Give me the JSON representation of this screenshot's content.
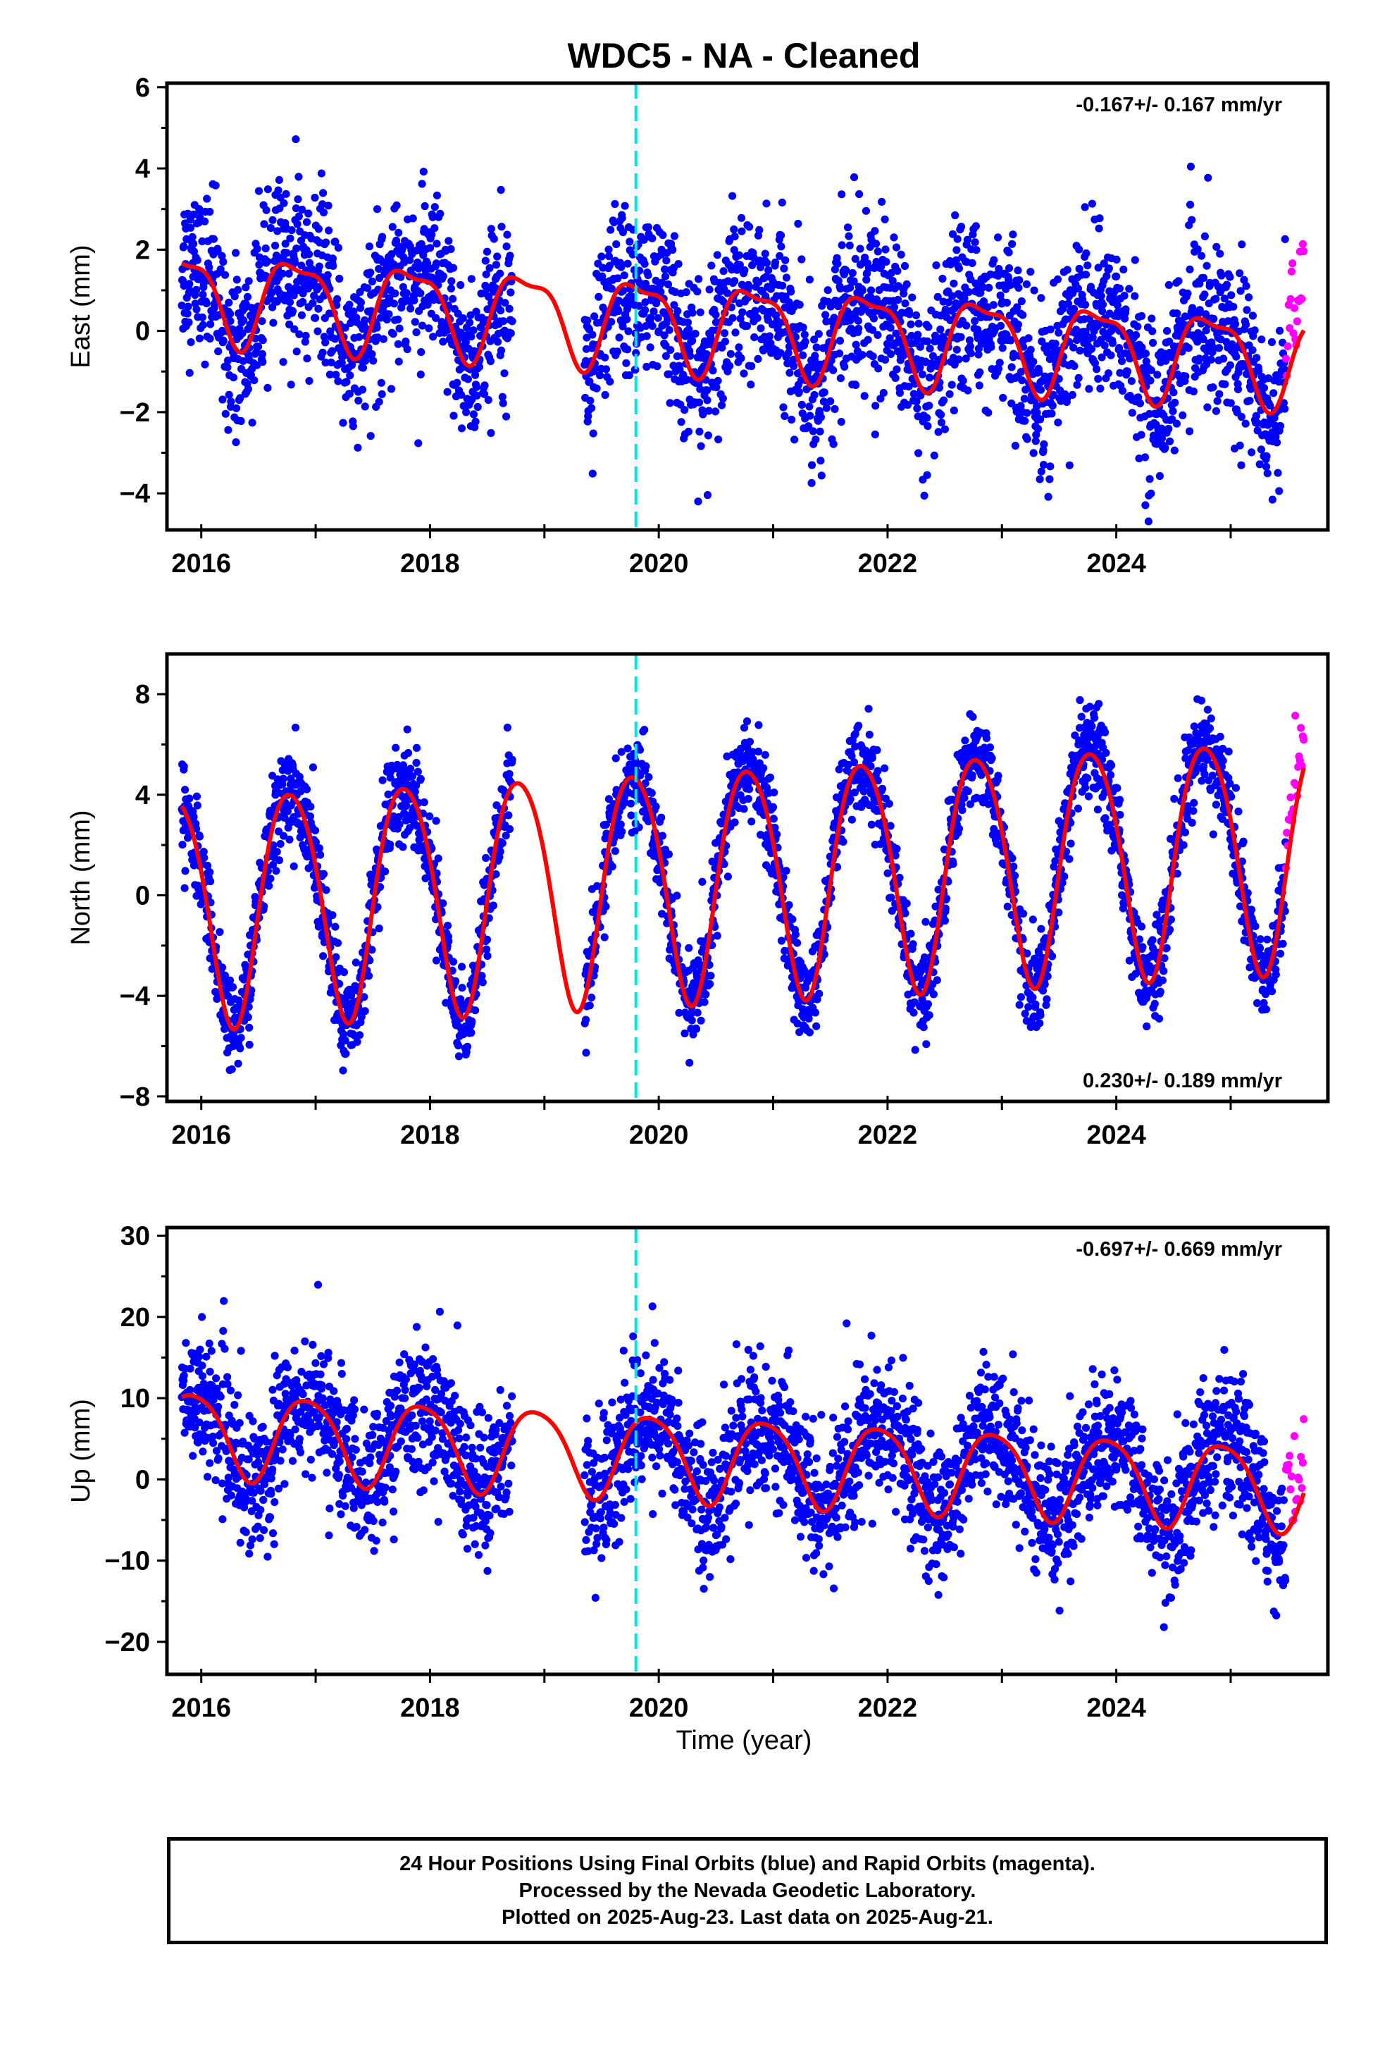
{
  "title": "WDC5  - NA - Cleaned",
  "x_axis_title": "Time (year)",
  "caption": [
    "24 Hour Positions Using Final Orbits (blue) and Rapid Orbits (magenta).",
    "Processed by the Nevada Geodetic Laboratory.",
    "Plotted on 2025-Aug-23. Last data on 2025-Aug-21."
  ],
  "colors": {
    "final_orbits": "#0000ff",
    "rapid_orbits": "#ff00ff",
    "model_fit": "#ff0000",
    "equipment_change": "#00e5e5",
    "frame": "#000000"
  },
  "chart_data": [
    {
      "type": "scatter",
      "panel": "east",
      "ylabel": "East (mm)",
      "xlim": [
        2015.7,
        2025.85
      ],
      "ylim": [
        -4.9,
        6.1
      ],
      "xticks": [
        2016,
        2018,
        2020,
        2022,
        2024
      ],
      "yticks": [
        -4,
        -2,
        0,
        2,
        4,
        6
      ],
      "rate_label": "-0.167+/- 0.167 mm/yr",
      "rate_position": "top-right",
      "vertical_line_x": 2019.8,
      "data_start": 2015.83,
      "final_end": 2025.48,
      "rapid_end": 2025.64,
      "gap": [
        2018.72,
        2019.35
      ],
      "model": {
        "offset": 0.25,
        "trend": -0.167,
        "annual_amp": 1.05,
        "annual_phase": 0.58,
        "semiannual_amp": 0.35
      },
      "scatter_sd": 1.0,
      "series": [
        {
          "name": "Final Orbits",
          "color": "#0000ff",
          "kind": "points"
        },
        {
          "name": "Rapid Orbits",
          "color": "#ff00ff",
          "kind": "points"
        },
        {
          "name": "Model",
          "color": "#ff0000",
          "kind": "line"
        }
      ]
    },
    {
      "type": "scatter",
      "panel": "north",
      "ylabel": "North (mm)",
      "xlim": [
        2015.7,
        2025.85
      ],
      "ylim": [
        -8.2,
        9.6
      ],
      "xticks": [
        2016,
        2018,
        2020,
        2022,
        2024
      ],
      "yticks": [
        -8,
        -4,
        0,
        4,
        8
      ],
      "rate_label": "0.230+/- 0.189 mm/yr",
      "rate_position": "bottom-right",
      "vertical_line_x": 2019.8,
      "data_start": 2015.83,
      "final_end": 2025.48,
      "rapid_end": 2025.64,
      "gap": [
        2018.72,
        2019.35
      ],
      "model": {
        "offset": 0.6,
        "trend": 0.23,
        "annual_amp": 4.6,
        "annual_phase": 0.53,
        "semiannual_amp": 0.5
      },
      "scatter_sd": 0.9,
      "series": [
        {
          "name": "Final Orbits",
          "color": "#0000ff",
          "kind": "points"
        },
        {
          "name": "Rapid Orbits",
          "color": "#ff00ff",
          "kind": "points"
        },
        {
          "name": "Model",
          "color": "#ff0000",
          "kind": "line"
        }
      ]
    },
    {
      "type": "scatter",
      "panel": "up",
      "ylabel": "Up (mm)",
      "xlim": [
        2015.7,
        2025.85
      ],
      "ylim": [
        -24,
        31
      ],
      "xticks": [
        2016,
        2018,
        2020,
        2022,
        2024
      ],
      "yticks": [
        -20,
        -10,
        0,
        10,
        20,
        30
      ],
      "rate_label": "-0.697+/- 0.669 mm/yr",
      "rate_position": "top-right",
      "vertical_line_x": 2019.8,
      "data_start": 2015.83,
      "final_end": 2025.48,
      "rapid_end": 2025.64,
      "gap": [
        2018.72,
        2019.35
      ],
      "model": {
        "offset": 3.0,
        "trend": -0.697,
        "annual_amp": 5.2,
        "annual_phase": 0.68,
        "semiannual_amp": 0.8
      },
      "scatter_sd": 4.2,
      "series": [
        {
          "name": "Final Orbits",
          "color": "#0000ff",
          "kind": "points"
        },
        {
          "name": "Rapid Orbits",
          "color": "#ff00ff",
          "kind": "points"
        },
        {
          "name": "Model",
          "color": "#ff0000",
          "kind": "line"
        }
      ]
    }
  ]
}
